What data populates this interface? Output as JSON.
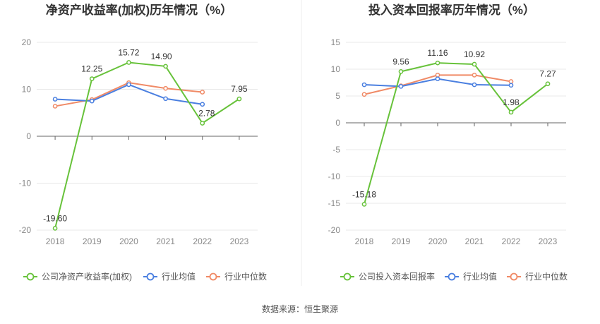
{
  "source": "数据来源：恒生聚源",
  "colors": {
    "company": "#67c23a",
    "avg": "#4a7fe0",
    "median": "#f08a66"
  },
  "chart_data": [
    {
      "type": "line",
      "title": "净资产收益率(加权)历年情况（%）",
      "x": [
        "2018",
        "2019",
        "2020",
        "2021",
        "2022",
        "2023"
      ],
      "ylim": [
        -20,
        20
      ],
      "yticks": [
        20,
        10,
        0,
        -10,
        -20
      ],
      "grid": true,
      "legend": "bottom",
      "series": [
        {
          "name": "公司净资产收益率(加权)",
          "values": [
            -19.6,
            12.25,
            15.72,
            14.9,
            2.78,
            7.95
          ],
          "labels": [
            "-19.60",
            "12.25",
            "15.72",
            "14.90",
            "2.78",
            "7.95"
          ]
        },
        {
          "name": "行业均值",
          "values": [
            7.9,
            7.5,
            11.0,
            8.0,
            6.8,
            null
          ]
        },
        {
          "name": "行业中位数",
          "values": [
            6.4,
            7.8,
            11.4,
            10.2,
            9.4,
            null
          ]
        }
      ]
    },
    {
      "type": "line",
      "title": "投入资本回报率历年情况（%）",
      "x": [
        "2018",
        "2019",
        "2020",
        "2021",
        "2022",
        "2023"
      ],
      "ylim": [
        -20,
        15
      ],
      "yticks": [
        15,
        10,
        5,
        0,
        -5,
        -10,
        -15,
        -20
      ],
      "grid": true,
      "legend": "bottom",
      "series": [
        {
          "name": "公司投入资本回报率",
          "values": [
            -15.18,
            9.56,
            11.16,
            10.92,
            1.98,
            7.27
          ],
          "labels": [
            "-15.18",
            "9.56",
            "11.16",
            "10.92",
            "1.98",
            "7.27"
          ]
        },
        {
          "name": "行业均值",
          "values": [
            7.1,
            6.8,
            8.2,
            7.1,
            7.0,
            null
          ]
        },
        {
          "name": "行业中位数",
          "values": [
            5.3,
            6.9,
            8.9,
            8.9,
            7.7,
            null
          ]
        }
      ]
    }
  ]
}
